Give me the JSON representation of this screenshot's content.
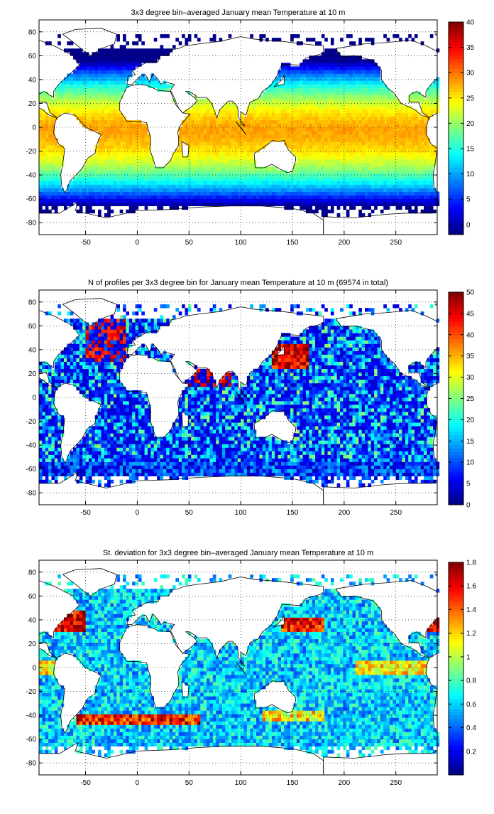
{
  "chart_data": [
    {
      "type": "heatmap",
      "title": "3x3 degree bin–averaged January mean Temperature at 10 m",
      "xlim": [
        -95,
        290
      ],
      "ylim": [
        -90,
        90
      ],
      "xticks": [
        -50,
        0,
        50,
        100,
        150,
        200,
        250
      ],
      "yticks": [
        -80,
        -60,
        -40,
        -20,
        0,
        20,
        40,
        60,
        80
      ],
      "bin_size_deg": 3,
      "grid": "dotted",
      "colorbar": {
        "min": -2,
        "max": 40,
        "ticks": [
          0,
          5,
          10,
          15,
          20,
          25,
          30,
          35,
          40
        ],
        "colormap": "jet"
      },
      "field": "temperature"
    },
    {
      "type": "heatmap",
      "title": "N of profiles per 3x3 degree bin for January mean Temperature at 10 m (69574 in total)",
      "xlim": [
        -95,
        290
      ],
      "ylim": [
        -90,
        90
      ],
      "xticks": [
        -50,
        0,
        50,
        100,
        150,
        200,
        250
      ],
      "yticks": [
        -80,
        -60,
        -40,
        -20,
        0,
        20,
        40,
        60,
        80
      ],
      "bin_size_deg": 3,
      "grid": "dotted",
      "colorbar": {
        "min": 0,
        "max": 50,
        "ticks": [
          0,
          5,
          10,
          15,
          20,
          25,
          30,
          35,
          40,
          45,
          50
        ],
        "colormap": "jet"
      },
      "field": "count"
    },
    {
      "type": "heatmap",
      "title": "St. deviation for 3x3 degree bin–averaged January mean Temperature at 10 m",
      "xlim": [
        -95,
        290
      ],
      "ylim": [
        -90,
        90
      ],
      "xticks": [
        -50,
        0,
        50,
        100,
        150,
        200,
        250
      ],
      "yticks": [
        -80,
        -60,
        -40,
        -20,
        0,
        20,
        40,
        60,
        80
      ],
      "bin_size_deg": 3,
      "grid": "dotted",
      "colorbar": {
        "min": 0,
        "max": 1.8,
        "ticks": [
          0.2,
          0.4,
          0.6,
          0.8,
          1,
          1.2,
          1.4,
          1.6,
          1.8
        ],
        "colormap": "jet"
      },
      "field": "stdev"
    }
  ]
}
